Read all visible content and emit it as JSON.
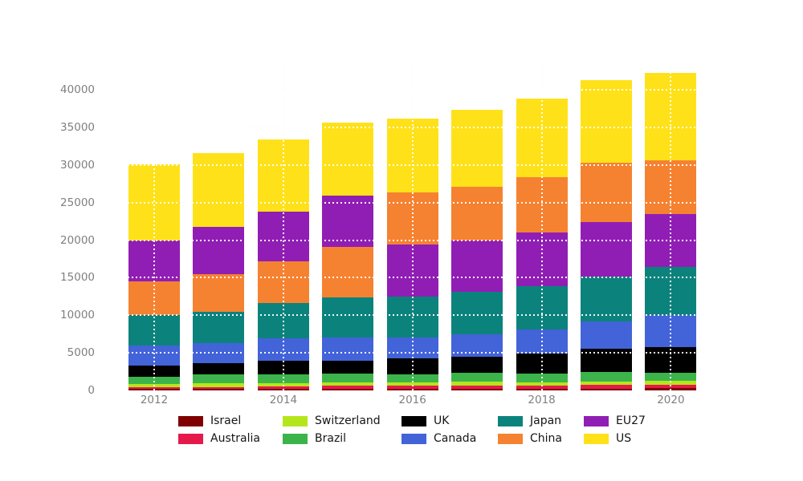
{
  "chart_data": {
    "type": "bar",
    "variant": "stacked-vertical",
    "title": "",
    "xlabel": "",
    "ylabel": "",
    "x": [
      "2012",
      "2013",
      "2014",
      "2015",
      "2016",
      "2017",
      "2018",
      "2019",
      "2020"
    ],
    "x_axis_tick_labels": [
      "2012",
      "2014",
      "2016",
      "2018",
      "2020"
    ],
    "y_axis_ticks": [
      0,
      5000,
      10000,
      15000,
      20000,
      25000,
      30000,
      35000,
      40000
    ],
    "y_axis_tick_labels": [
      "0",
      "5000",
      "10000",
      "15000",
      "20000",
      "25000",
      "30000",
      "35000",
      "40000"
    ],
    "ylim": [
      0,
      43500
    ],
    "grid": "dotted, horizontal at each y tick and vertical at even years; light gray on background, white over bars",
    "stack_order": "each year stacked smallest-to-largest from bottom (EU27/China swap above/below between 2015 and 2016)",
    "legend_position": "bottom, 5 columns x 2 rows, column-major in series order",
    "series": [
      {
        "name": "Israel",
        "color": "#800000",
        "values": [
          150,
          160,
          150,
          170,
          170,
          190,
          190,
          200,
          330
        ]
      },
      {
        "name": "Australia",
        "color": "#e6194b",
        "values": [
          250,
          300,
          400,
          420,
          420,
          460,
          430,
          490,
          430
        ]
      },
      {
        "name": "Switzerland",
        "color": "#b5e61d",
        "values": [
          400,
          430,
          420,
          460,
          430,
          470,
          460,
          500,
          500
        ]
      },
      {
        "name": "Brazil",
        "color": "#3cb44b",
        "values": [
          950,
          1230,
          1180,
          1170,
          1130,
          1210,
          1170,
          1210,
          1070
        ]
      },
      {
        "name": "UK",
        "color": "#000000",
        "values": [
          1500,
          1500,
          1750,
          1740,
          2100,
          2100,
          2610,
          3100,
          3450
        ]
      },
      {
        "name": "Canada",
        "color": "#4363d8",
        "values": [
          2750,
          2680,
          3020,
          3100,
          2750,
          2990,
          3270,
          3660,
          4270
        ]
      },
      {
        "name": "Japan",
        "color": "#0b837c",
        "values": [
          4000,
          4110,
          4670,
          5310,
          5480,
          5660,
          5770,
          5990,
          6400
        ]
      },
      {
        "name": "China",
        "color": "#f58231",
        "values": [
          4500,
          5080,
          5580,
          6760,
          6950,
          7150,
          7400,
          7960,
          7180
        ]
      },
      {
        "name": "EU27",
        "color": "#911eb4",
        "values": [
          5450,
          6240,
          6590,
          6800,
          6930,
          6870,
          7100,
          7230,
          7050
        ]
      },
      {
        "name": "US",
        "color": "#ffe119",
        "values": [
          10150,
          9860,
          9650,
          9690,
          9790,
          10230,
          10420,
          10970,
          11620
        ]
      }
    ],
    "totals": [
      30100,
      31590,
      33410,
      35620,
      36150,
      37330,
      38820,
      41310,
      42300
    ]
  },
  "axis_text_color": "#7f7f7f",
  "legend_text_color": "#151515",
  "background_color": "#ffffff"
}
